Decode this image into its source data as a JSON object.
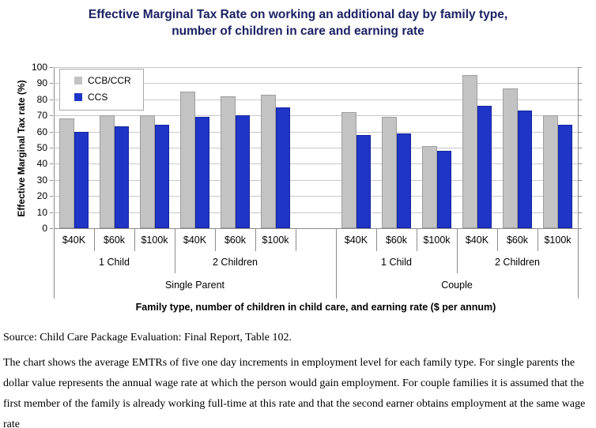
{
  "title": {
    "line1": "Effective Marginal Tax Rate on working an additional day by family type,",
    "line2": "number of children in care and earning rate",
    "color": "#1b2163"
  },
  "chart_data": {
    "type": "bar",
    "ylabel": "Effective Marginal Tax rate (%)",
    "xlabel": "Family type, number of children in child care, and earning rate ($ per annum)",
    "ylim": [
      0,
      100
    ],
    "ytick_step": 10,
    "grid": true,
    "legend_position": "top-left-inside",
    "series": [
      {
        "name": "CCB/CCR",
        "color": "#c3c3c3",
        "border": "#9e9e9e",
        "values": [
          68,
          70,
          70,
          85,
          82,
          83,
          72,
          69,
          51,
          95,
          87,
          70
        ]
      },
      {
        "name": "CCS",
        "color": "#1f35c8",
        "border": "#13239e",
        "values": [
          60,
          63,
          64,
          69,
          70,
          75,
          58,
          59,
          48,
          76,
          73,
          64
        ]
      }
    ],
    "groups": [
      {
        "family": "Single Parent",
        "subgroups": [
          {
            "label": "1 Child",
            "categories": [
              "$40K",
              "$60k",
              "$100k"
            ]
          },
          {
            "label": "2 Children",
            "categories": [
              "$40K",
              "$60k",
              "$100k"
            ]
          }
        ]
      },
      {
        "family": "Couple",
        "subgroups": [
          {
            "label": "1 Child",
            "categories": [
              "$40K",
              "$60k",
              "$100k"
            ]
          },
          {
            "label": "2 Children",
            "categories": [
              "$40K",
              "$60k",
              "$100k"
            ]
          }
        ]
      }
    ],
    "colors": {
      "gridline": "#c8c8c8",
      "axis": "#8c8c8c"
    }
  },
  "footer": {
    "source": "Source: Child Care Package Evaluation: Final Report, Table 102.",
    "note": "The chart shows the average EMTRs of five one day increments in employment level for each family type. For single parents the dollar value represents the annual wage rate at which the person would gain employment. For couple families it is assumed that the first member of the family is already working full-time at this rate and that the second earner obtains employment at the same wage rate"
  }
}
